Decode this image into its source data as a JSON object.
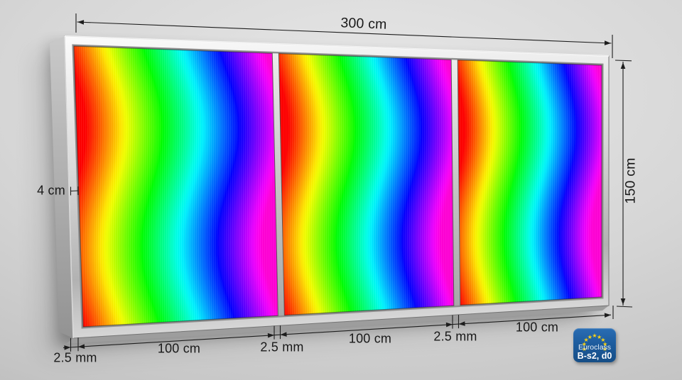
{
  "wall": {
    "light": "#e7e7e7",
    "base": "#d6d6d6",
    "dark": "#a8a8a8"
  },
  "dimensions": {
    "total_width_label": "300 cm",
    "height_label": "150 cm",
    "depth_label": "4 cm",
    "panel_labels": [
      "100 cm",
      "100 cm",
      "100 cm"
    ],
    "gap_labels": [
      "2.5 mm",
      "2.5 mm",
      "2.5 mm"
    ]
  },
  "panels": {
    "count": 3,
    "pattern": "rainbow-wave",
    "hue_start_deg": 0,
    "hue_end_deg": 310,
    "wave_amplitude": 0.062,
    "wave_frequency": 1.1,
    "wave_phase_rad": -0.363,
    "stripe_count": 46
  },
  "frame": {
    "color_light": "#fbfbfb",
    "color_mid": "#d8d8d8",
    "color_dark": "#b2b2b2",
    "edge_color": "#757575",
    "side_light": "#c9c9c9",
    "side_dark": "#939393",
    "underside": "#9d9d9d"
  },
  "annotation": {
    "line_color": "#1d1d1d",
    "text_color": "#191919"
  },
  "badge": {
    "label_line1": "Euroclass",
    "label_line2": "B-s2, d0",
    "background": "#1d5c9e",
    "star_color": "#f7d117",
    "star_count": 9,
    "text_color": "#ffffff"
  }
}
